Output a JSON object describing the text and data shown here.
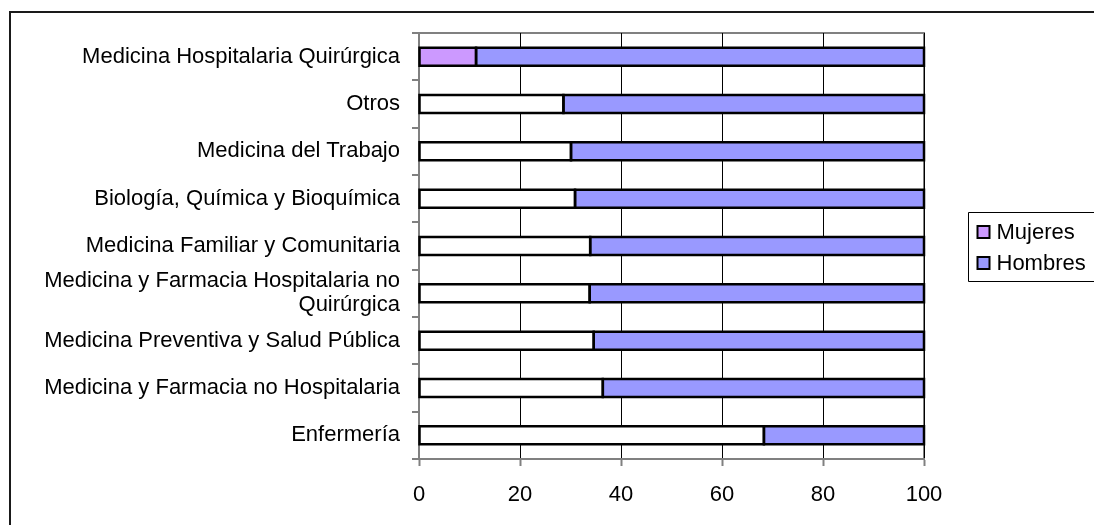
{
  "chart_data": {
    "type": "bar",
    "orientation": "horizontal",
    "stacked": true,
    "categories": [
      "Medicina Hospitalaria Quirúrgica",
      "Otros",
      "Medicina del Trabajo",
      "Biología, Química y Bioquímica",
      "Medicina Familiar y Comunitaria",
      "Medicina y Farmacia Hospitalaria no Quirúrgica",
      "Medicina Preventiva y Salud Pública",
      "Medicina y Farmacia no Hospitalaria",
      "Enfermería"
    ],
    "series": [
      {
        "name": "Mujeres",
        "color": "#cc99ff",
        "colors": [
          "#cc99ff",
          "#ffffff",
          "#ffffff",
          "#ffffff",
          "#ffffff",
          "#ffffff",
          "#ffffff",
          "#ffffff",
          "#ffffff"
        ],
        "values": [
          11.3,
          28.6,
          30.1,
          30.9,
          33.9,
          33.8,
          34.6,
          36.4,
          68.3
        ]
      },
      {
        "name": "Hombres",
        "color": "#9999ff",
        "values": [
          88.7,
          71.4,
          69.9,
          69.1,
          66.1,
          66.2,
          65.4,
          63.6,
          31.7
        ]
      }
    ],
    "xlim": [
      0,
      100
    ],
    "xticks": [
      0,
      20,
      40,
      60,
      80,
      100
    ],
    "grid": "x",
    "legend": "right"
  }
}
